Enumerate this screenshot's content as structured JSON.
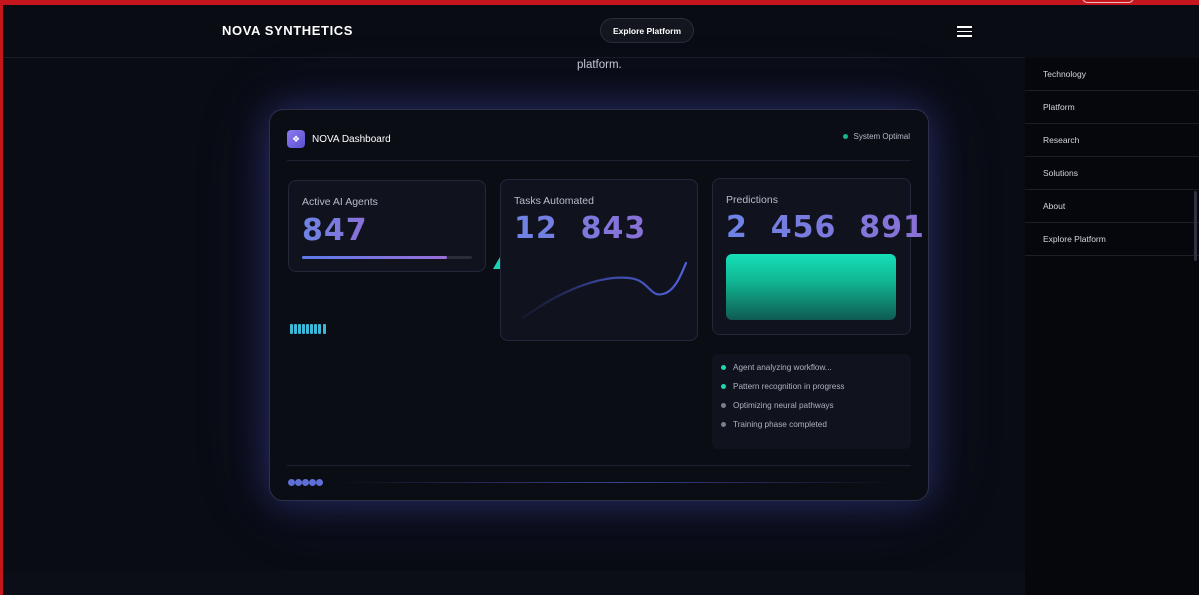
{
  "header": {
    "brand": "NOVA SYNTHETICS",
    "cta_label": "Explore Platform",
    "menu_icon": "hamburger-icon"
  },
  "hero": {
    "tail_text": "platform."
  },
  "sidemenu": {
    "items": [
      {
        "label": "Technology"
      },
      {
        "label": "Platform"
      },
      {
        "label": "Research"
      },
      {
        "label": "Solutions"
      },
      {
        "label": "About"
      },
      {
        "label": "Explore Platform"
      }
    ]
  },
  "dashboard": {
    "logo_icon": "sparkle-icon",
    "title": "NOVA Dashboard",
    "status": "System Optimal",
    "status_color": "#17b58a",
    "cards": {
      "agents": {
        "title": "Active AI Agents",
        "value": "847",
        "progress": 0.85
      },
      "tasks": {
        "title": "Tasks Automated",
        "value": "12  843"
      },
      "predictions": {
        "title": "Predictions",
        "value": "2  456  891"
      }
    },
    "activity": [
      {
        "label": "Agent analyzing workflow...",
        "dot_color": "#1fd6b0"
      },
      {
        "label": "Pattern recognition in progress",
        "dot_color": "#1fd6b0"
      },
      {
        "label": "Optimizing neural pathways",
        "dot_color": "#7a7f8f"
      },
      {
        "label": "Training phase completed",
        "dot_color": "#7a7f8f"
      }
    ],
    "accent_color": "#19d6b2"
  }
}
